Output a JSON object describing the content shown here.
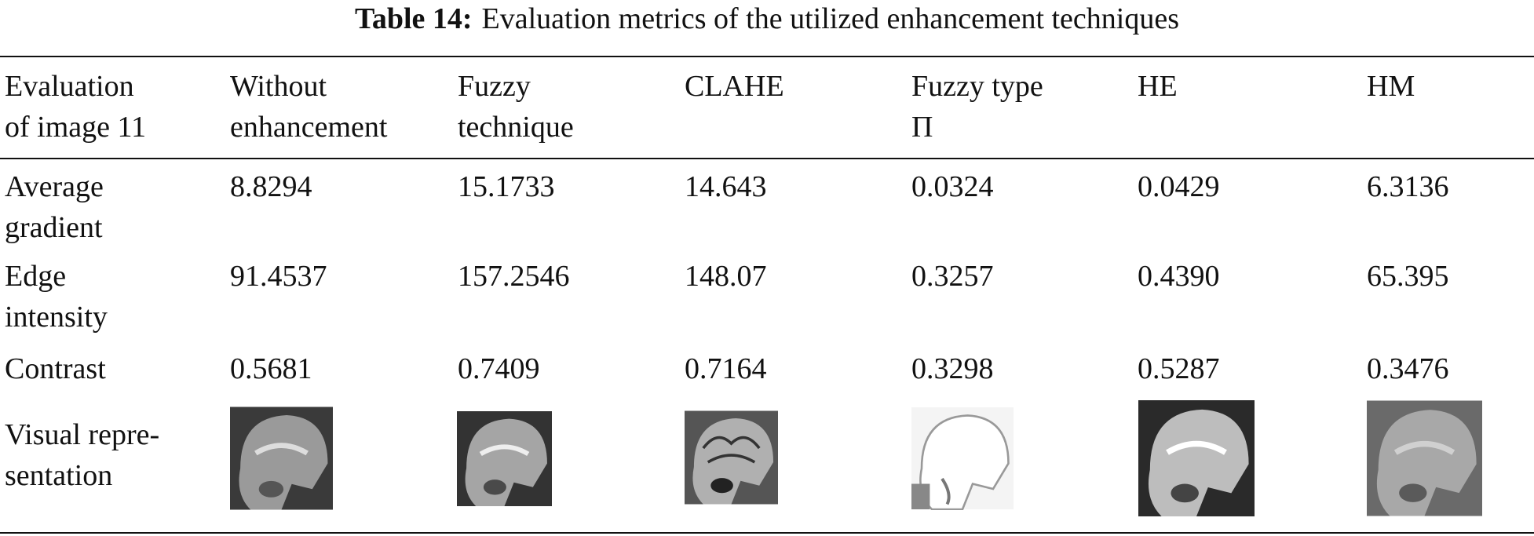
{
  "title": {
    "label": "Table 14:",
    "text": "Evaluation metrics of the utilized enhancement techniques"
  },
  "table": {
    "header": [
      "Evaluation\nof image 11",
      "Without\nenhancement",
      "Fuzzy\ntechnique",
      "CLAHE",
      "Fuzzy type\nΠ",
      "HE",
      "HM"
    ],
    "rows": [
      [
        "Average\ngradient",
        "8.8294",
        "15.1733",
        "14.643",
        "0.0324",
        "0.0429",
        "6.3136"
      ],
      [
        "Edge\nintensity",
        "91.4537",
        "157.2546",
        "148.07",
        "0.3257",
        "0.4390",
        "65.395"
      ],
      [
        "Contrast",
        "0.5681",
        "0.7409",
        "0.7164",
        "0.3298",
        "0.5287",
        "0.3476"
      ],
      [
        "Visual repre-\nsentation"
      ]
    ]
  }
}
